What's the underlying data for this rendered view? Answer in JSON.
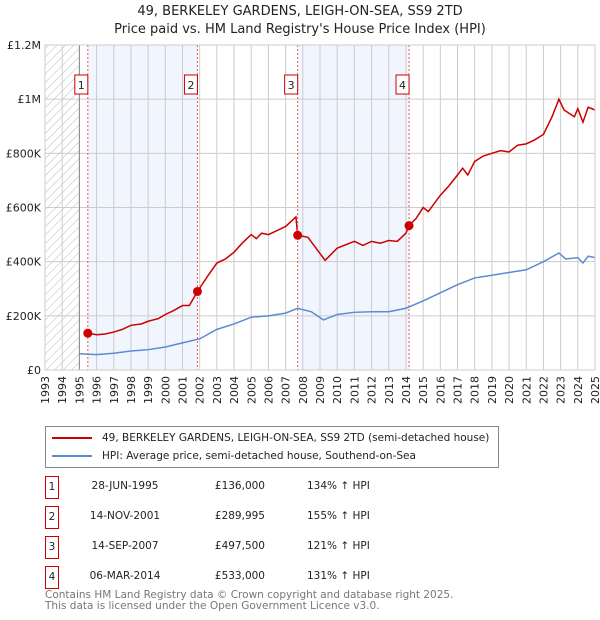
{
  "chart_data": {
    "type": "line",
    "title": "49, BERKELEY GARDENS, LEIGH-ON-SEA, SS9 2TD",
    "subtitle": "Price paid vs. HM Land Registry's House Price Index (HPI)",
    "xlim": [
      1993,
      2025
    ],
    "ylim": [
      0,
      1200000
    ],
    "x_ticks": [
      "1993",
      "1994",
      "1995",
      "1996",
      "1997",
      "1998",
      "1999",
      "2000",
      "2001",
      "2002",
      "2003",
      "2004",
      "2005",
      "2006",
      "2007",
      "2008",
      "2009",
      "2010",
      "2011",
      "2012",
      "2013",
      "2014",
      "2015",
      "2016",
      "2017",
      "2018",
      "2019",
      "2020",
      "2021",
      "2022",
      "2023",
      "2024",
      "2025"
    ],
    "y_ticks": [
      {
        "v": 0,
        "label": "£0"
      },
      {
        "v": 200000,
        "label": "£200K"
      },
      {
        "v": 400000,
        "label": "£400K"
      },
      {
        "v": 600000,
        "label": "£600K"
      },
      {
        "v": 800000,
        "label": "£800K"
      },
      {
        "v": 1000000,
        "label": "£1M"
      },
      {
        "v": 1200000,
        "label": "£1.2M"
      }
    ],
    "grid": true,
    "hatched_range": [
      1993,
      1995
    ],
    "shaded_ranges": [
      [
        1995.49,
        2001.87
      ],
      [
        2007.7,
        2014.18
      ]
    ],
    "series": [
      {
        "name": "49, BERKELEY GARDENS, LEIGH-ON-SEA, SS9 2TD (semi-detached house)",
        "color": "#cc0000",
        "points": [
          [
            1995.49,
            136000
          ],
          [
            1996,
            130000
          ],
          [
            1996.5,
            133000
          ],
          [
            1997,
            140000
          ],
          [
            1997.5,
            150000
          ],
          [
            1998,
            165000
          ],
          [
            1998.6,
            170000
          ],
          [
            1999,
            180000
          ],
          [
            1999.6,
            190000
          ],
          [
            2000,
            205000
          ],
          [
            2000.5,
            220000
          ],
          [
            2001,
            238000
          ],
          [
            2001.4,
            238000
          ],
          [
            2001.87,
            290000
          ],
          [
            2002.5,
            350000
          ],
          [
            2003,
            395000
          ],
          [
            2003.5,
            410000
          ],
          [
            2004,
            435000
          ],
          [
            2004.5,
            470000
          ],
          [
            2005,
            500000
          ],
          [
            2005.3,
            485000
          ],
          [
            2005.6,
            505000
          ],
          [
            2006,
            500000
          ],
          [
            2006.5,
            515000
          ],
          [
            2007,
            530000
          ],
          [
            2007.6,
            565000
          ],
          [
            2007.7,
            497500
          ],
          [
            2008.3,
            490000
          ],
          [
            2009,
            430000
          ],
          [
            2009.3,
            405000
          ],
          [
            2010,
            450000
          ],
          [
            2011,
            475000
          ],
          [
            2011.5,
            460000
          ],
          [
            2012,
            475000
          ],
          [
            2012.5,
            468000
          ],
          [
            2013,
            478000
          ],
          [
            2013.5,
            475000
          ],
          [
            2014,
            505000
          ],
          [
            2014.18,
            533000
          ],
          [
            2014.6,
            560000
          ],
          [
            2015,
            600000
          ],
          [
            2015.3,
            585000
          ],
          [
            2016,
            645000
          ],
          [
            2016.5,
            680000
          ],
          [
            2017,
            720000
          ],
          [
            2017.3,
            745000
          ],
          [
            2017.6,
            720000
          ],
          [
            2018,
            770000
          ],
          [
            2018.5,
            790000
          ],
          [
            2019,
            800000
          ],
          [
            2019.5,
            810000
          ],
          [
            2020,
            805000
          ],
          [
            2020.5,
            830000
          ],
          [
            2021,
            835000
          ],
          [
            2021.5,
            850000
          ],
          [
            2022,
            870000
          ],
          [
            2022.5,
            935000
          ],
          [
            2022.9,
            1000000
          ],
          [
            2023.2,
            960000
          ],
          [
            2023.8,
            935000
          ],
          [
            2024,
            965000
          ],
          [
            2024.3,
            915000
          ],
          [
            2024.6,
            970000
          ],
          [
            2025,
            960000
          ]
        ]
      },
      {
        "name": "HPI: Average price, semi-detached house, Southend-on-Sea",
        "color": "#5b8bd0",
        "points": [
          [
            1995,
            60000
          ],
          [
            1996,
            57000
          ],
          [
            1997,
            62000
          ],
          [
            1998,
            70000
          ],
          [
            1999,
            75000
          ],
          [
            2000,
            85000
          ],
          [
            2001,
            100000
          ],
          [
            2002,
            115000
          ],
          [
            2003,
            150000
          ],
          [
            2004,
            170000
          ],
          [
            2005,
            195000
          ],
          [
            2006,
            200000
          ],
          [
            2007,
            210000
          ],
          [
            2007.7,
            228000
          ],
          [
            2008.5,
            215000
          ],
          [
            2009.2,
            185000
          ],
          [
            2010,
            205000
          ],
          [
            2011,
            213000
          ],
          [
            2012,
            215000
          ],
          [
            2013,
            215000
          ],
          [
            2014,
            228000
          ],
          [
            2015,
            255000
          ],
          [
            2016,
            285000
          ],
          [
            2017,
            315000
          ],
          [
            2018,
            340000
          ],
          [
            2019,
            350000
          ],
          [
            2020,
            360000
          ],
          [
            2021,
            370000
          ],
          [
            2022,
            400000
          ],
          [
            2022.9,
            432000
          ],
          [
            2023.3,
            410000
          ],
          [
            2024,
            415000
          ],
          [
            2024.3,
            395000
          ],
          [
            2024.6,
            420000
          ],
          [
            2025,
            415000
          ]
        ]
      }
    ],
    "sales": [
      {
        "num": "1",
        "x": 1995.49,
        "price": 136000,
        "date": "28-JUN-1995",
        "price_label": "£136,000",
        "hpi": "134% ↑ HPI"
      },
      {
        "num": "2",
        "x": 2001.87,
        "price": 289995,
        "date": "14-NOV-2001",
        "price_label": "£289,995",
        "hpi": "155% ↑ HPI"
      },
      {
        "num": "3",
        "x": 2007.7,
        "price": 497500,
        "date": "14-SEP-2007",
        "price_label": "£497,500",
        "hpi": "121% ↑ HPI"
      },
      {
        "num": "4",
        "x": 2014.18,
        "price": 533000,
        "date": "06-MAR-2014",
        "price_label": "£533,000",
        "hpi": "131% ↑ HPI"
      }
    ]
  },
  "legend": {
    "red": "49, BERKELEY GARDENS, LEIGH-ON-SEA, SS9 2TD (semi-detached house)",
    "blue": "HPI: Average price, semi-detached house, Southend-on-Sea"
  },
  "footer": {
    "line1": "Contains HM Land Registry data © Crown copyright and database right 2025.",
    "line2": "This data is licensed under the Open Government Licence v3.0."
  }
}
